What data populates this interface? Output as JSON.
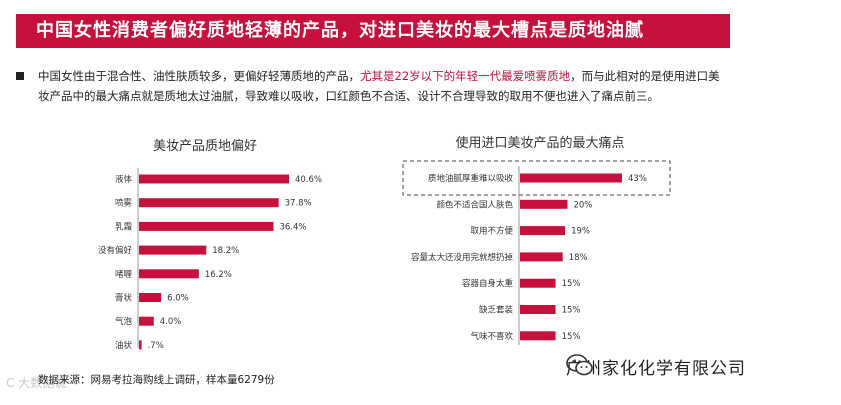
{
  "banner": {
    "title": "中国女性消费者偏好质地轻薄的产品，对进口美妆的最大槽点是质地油腻"
  },
  "paragraph": {
    "part1": "中国女性由于混合性、油性肤质较多，更偏好轻薄质地的产品，",
    "highlight": "尤其是22岁以下的年轻一代最爱喷雾质地",
    "part2": "，而与此相对的是使用进口美妆产品中的最大痛点就是质地太过油腻，导致难以吸收，口红颜色不合适、设计不合理导致的取用不便也进入了痛点前三。"
  },
  "source": "数据来源：网易考拉海购线上调研，样本量6279份",
  "watermark": "C 大数据说",
  "brand": {
    "name": "广州家化化学有限公司",
    "icon": "wechat-icon"
  },
  "colors": {
    "accent": "#c8103c",
    "bar": "#c8103c"
  },
  "chart_data": [
    {
      "type": "bar",
      "orientation": "horizontal",
      "title": "美妆产品质地偏好",
      "categories": [
        "液体",
        "喷雾",
        "乳霜",
        "没有偏好",
        "啫喱",
        "膏状",
        "气泡",
        "油状"
      ],
      "values": [
        40.6,
        37.8,
        36.4,
        18.2,
        16.2,
        6.0,
        4.0,
        0.7
      ],
      "value_labels": [
        "40.6%",
        "37.8%",
        "36.4%",
        "18.2%",
        "16.2%",
        "6.0%",
        "4.0%",
        ".7%"
      ],
      "xlim": [
        0,
        45
      ]
    },
    {
      "type": "bar",
      "orientation": "horizontal",
      "title": "使用进口美妆产品的最大痛点",
      "categories": [
        "质地油腻厚重难以吸收",
        "颜色不适合国人肤色",
        "取用不方便",
        "容量太大还没用完就想扔掉",
        "容器自身太重",
        "缺乏套装",
        "气味不喜欢"
      ],
      "values": [
        43,
        20,
        19,
        18,
        15,
        15,
        15
      ],
      "value_labels": [
        "43%",
        "20%",
        "19%",
        "18%",
        "15%",
        "15%",
        "15%"
      ],
      "xlim": [
        0,
        46
      ],
      "highlighted_category": "质地油腻厚重难以吸收"
    }
  ]
}
